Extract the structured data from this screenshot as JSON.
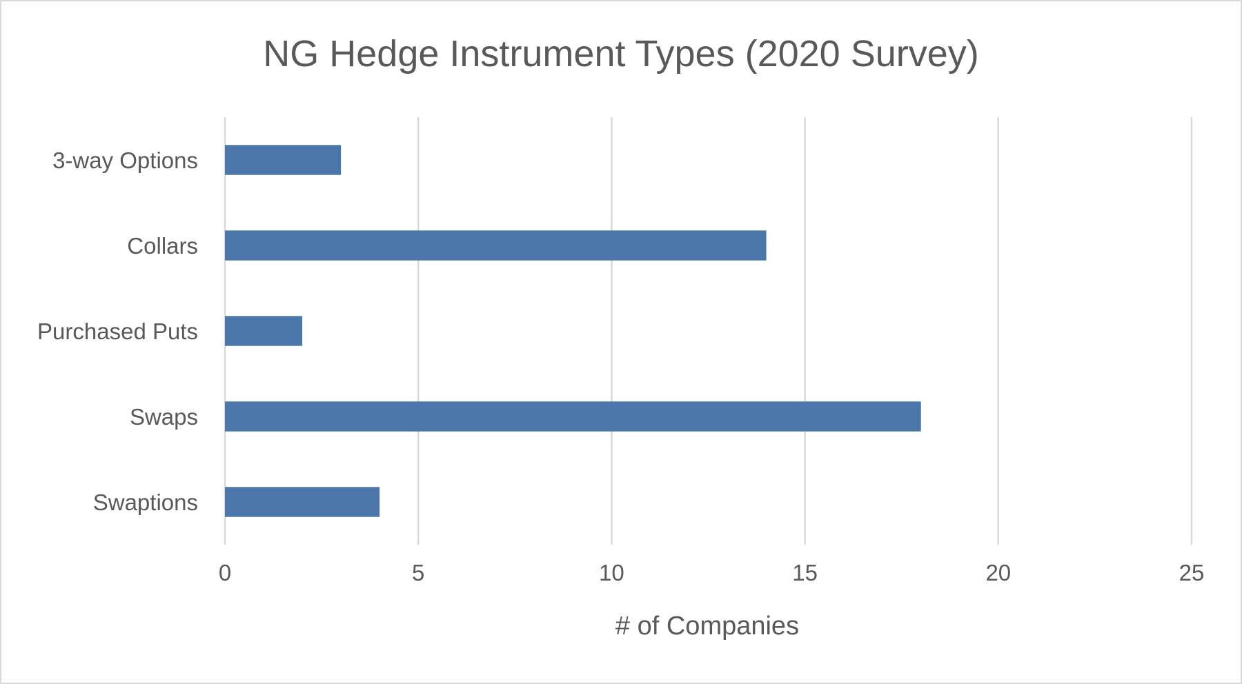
{
  "chart_data": {
    "type": "bar",
    "orientation": "horizontal",
    "title": "NG Hedge Instrument Types (2020 Survey)",
    "xlabel": "# of Companies",
    "ylabel": "",
    "categories": [
      "3-way Options",
      "Collars",
      "Purchased Puts",
      "Swaps",
      "Swaptions"
    ],
    "values": [
      3,
      14,
      2,
      18,
      4
    ],
    "xlim": [
      0,
      25
    ],
    "xticks": [
      "0",
      "5",
      "10",
      "15",
      "20",
      "25"
    ],
    "grid": true,
    "legend": "none",
    "bar_color": "#4a76aa"
  }
}
